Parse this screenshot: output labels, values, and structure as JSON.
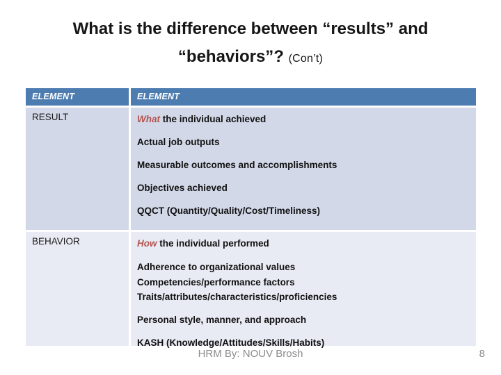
{
  "slide": {
    "title_line1": "What is the difference between “results” and",
    "title_line2_main": "“behaviors”? ",
    "title_line2_note": "(Con’t)",
    "footer_text": "HRM By: NOUV Brosh",
    "page_number": "8"
  },
  "colors": {
    "header_bg": "#4d7cb0",
    "result_row_bg": "#d2d8e8",
    "behavior_row_bg": "#e9ebf4",
    "accent_red": "#b3544f",
    "footer_gray": "#8b8b8b"
  },
  "table": {
    "headers": [
      "ELEMENT",
      "ELEMENT"
    ],
    "rows": [
      {
        "label": "RESULT",
        "paragraphs": [
          {
            "lead": "What",
            "rest": " the individual achieved"
          },
          {
            "text": "Actual job outputs"
          },
          {
            "text": "Measurable outcomes and accomplishments"
          },
          {
            "text": "Objectives achieved"
          },
          {
            "text": "QQCT (Quantity/Quality/Cost/Timeliness)"
          }
        ]
      },
      {
        "label": "BEHAVIOR",
        "paragraphs": [
          {
            "lead": "How",
            "rest": " the individual performed"
          },
          {
            "lines": [
              "Adherence to organizational values",
              "Competencies/performance factors",
              "Traits/attributes/characteristics/proficiencies"
            ]
          },
          {
            "text": "Personal style, manner, and approach"
          },
          {
            "text": "KASH (Knowledge/Attitudes/Skills/Habits)"
          }
        ]
      }
    ]
  }
}
